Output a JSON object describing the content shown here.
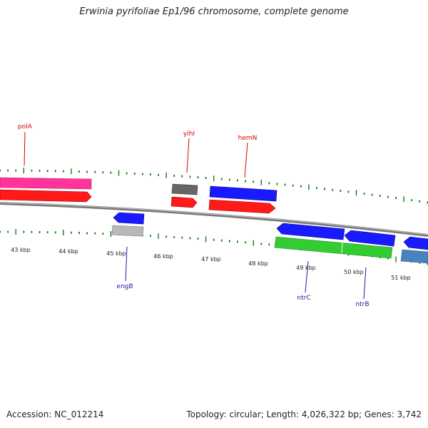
{
  "title": "Erwinia pyrifoliae Ep1/96 chromosome, complete genome",
  "footer": {
    "accession": "Accession: NC_012214",
    "topology": "Topology: circular; Length: 4,026,322 bp; Genes: 3,742"
  },
  "scale_labels": [
    "43 kbp",
    "44 kbp",
    "45 kbp",
    "46 kbp",
    "47 kbp",
    "48 kbp",
    "49 kbp",
    "50 kbp",
    "51 kbp"
  ],
  "genes": [
    {
      "name": "polA",
      "color": "#d80000"
    },
    {
      "name": "yihI",
      "color": "#d80000"
    },
    {
      "name": "hemN",
      "color": "#d80000"
    },
    {
      "name": "engB",
      "color": "#1a1aa8"
    },
    {
      "name": "ntrC",
      "color": "#1a1aa8"
    },
    {
      "name": "ntrB",
      "color": "#1a1aa8"
    }
  ],
  "colors": {
    "backbone": "#7a7a7a",
    "tick": "#1a7a1a",
    "cds_red": "#ff1a1a",
    "cds_blue": "#1a1aff",
    "cds_pink": "#ff3399",
    "cds_green": "#33cc33",
    "cds_gray": "#666666",
    "cds_lightgray": "#b8b8b8",
    "cds_steel": "#4a82c0"
  }
}
